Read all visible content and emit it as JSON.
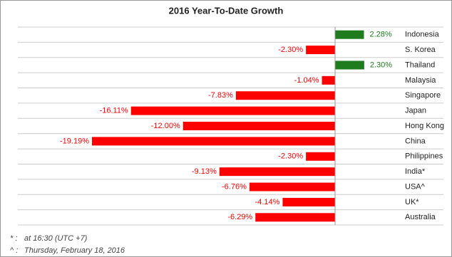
{
  "chart_data": {
    "type": "hbar",
    "title": "2016 Year-To-Date Growth",
    "categories": [
      "Indonesia",
      "S. Korea",
      "Thailand",
      "Malaysia",
      "Singapore",
      "Japan",
      "Hong Kong",
      "China",
      "Philippines",
      "India*",
      "USA^",
      "UK*",
      "Australia"
    ],
    "values": [
      2.28,
      -2.3,
      2.3,
      -1.04,
      -7.83,
      -16.11,
      -12.0,
      -19.19,
      -2.3,
      -9.13,
      -6.76,
      -4.14,
      -6.29
    ],
    "value_labels": [
      "2.28%",
      "-2.30%",
      "2.30%",
      "-1.04%",
      "-7.83%",
      "-16.11%",
      "-12.00%",
      "-19.19%",
      "-2.30%",
      "-9.13%",
      "-6.76%",
      "-4.14%",
      "-6.29%"
    ],
    "positive_color": "#1e7b1e",
    "negative_color": "#ff0000",
    "footnotes": [
      {
        "symbol": "* :",
        "text": "at 16:30 (UTC +7)"
      },
      {
        "symbol": "^ :",
        "text": "Thursday, February 18, 2016"
      }
    ]
  }
}
